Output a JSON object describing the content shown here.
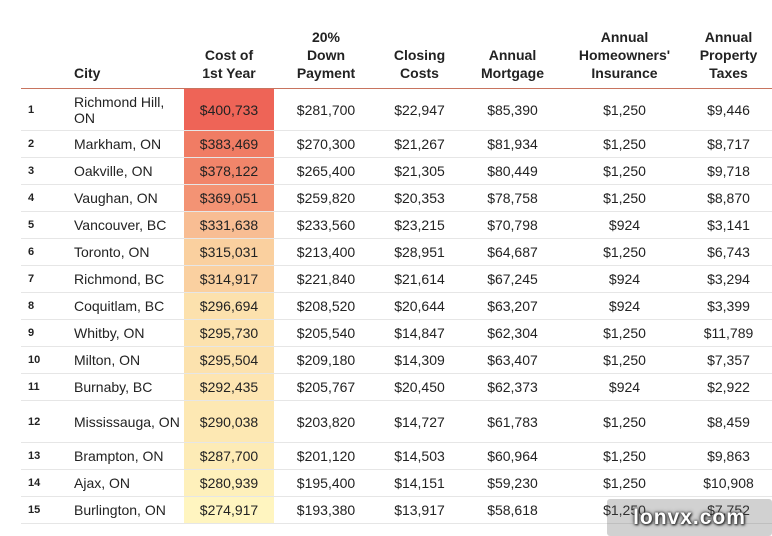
{
  "headers": {
    "rank": "",
    "city": "City",
    "cost": [
      "Cost of",
      "1st Year"
    ],
    "down": [
      "20%",
      "Down",
      "Payment"
    ],
    "closing": [
      "Closing",
      "Costs"
    ],
    "mortgage": [
      "Annual",
      "Mortgage"
    ],
    "insurance": [
      "Annual",
      "Homeowners'",
      "Insurance"
    ],
    "tax": [
      "Annual",
      "Property",
      "Taxes"
    ]
  },
  "rows": [
    {
      "rank": "1",
      "city": "Richmond Hill, ON",
      "cost": "$400,733",
      "down": "$281,700",
      "closing": "$22,947",
      "mortgage": "$85,390",
      "insurance": "$1,250",
      "tax": "$9,446",
      "cost_color": "#ee6457",
      "tall": true
    },
    {
      "rank": "2",
      "city": "Markham, ON",
      "cost": "$383,469",
      "down": "$270,300",
      "closing": "$21,267",
      "mortgage": "$81,934",
      "insurance": "$1,250",
      "tax": "$8,717",
      "cost_color": "#f07c64",
      "tall": false
    },
    {
      "rank": "3",
      "city": "Oakville, ON",
      "cost": "$378,122",
      "down": "$265,400",
      "closing": "$21,305",
      "mortgage": "$80,449",
      "insurance": "$1,250",
      "tax": "$9,718",
      "cost_color": "#f1856a",
      "tall": false
    },
    {
      "rank": "4",
      "city": "Vaughan, ON",
      "cost": "$369,051",
      "down": "$259,820",
      "closing": "$20,353",
      "mortgage": "$78,758",
      "insurance": "$1,250",
      "tax": "$8,870",
      "cost_color": "#f39374",
      "tall": false
    },
    {
      "rank": "5",
      "city": "Vancouver, BC",
      "cost": "$331,638",
      "down": "$233,560",
      "closing": "$23,215",
      "mortgage": "$70,798",
      "insurance": "$924",
      "tax": "$3,141",
      "cost_color": "#f8bd93",
      "tall": false
    },
    {
      "rank": "6",
      "city": "Toronto, ON",
      "cost": "$315,031",
      "down": "$213,400",
      "closing": "$28,951",
      "mortgage": "$64,687",
      "insurance": "$1,250",
      "tax": "$6,743",
      "cost_color": "#fad09f",
      "tall": false
    },
    {
      "rank": "7",
      "city": "Richmond, BC",
      "cost": "$314,917",
      "down": "$221,840",
      "closing": "$21,614",
      "mortgage": "$67,245",
      "insurance": "$924",
      "tax": "$3,294",
      "cost_color": "#fad0a0",
      "tall": false
    },
    {
      "rank": "8",
      "city": "Coquitlam, BC",
      "cost": "$296,694",
      "down": "$208,520",
      "closing": "$20,644",
      "mortgage": "$63,207",
      "insurance": "$924",
      "tax": "$3,399",
      "cost_color": "#fce1ad",
      "tall": false
    },
    {
      "rank": "9",
      "city": "Whitby, ON",
      "cost": "$295,730",
      "down": "$205,540",
      "closing": "$14,847",
      "mortgage": "$62,304",
      "insurance": "$1,250",
      "tax": "$11,789",
      "cost_color": "#fce2ae",
      "tall": false
    },
    {
      "rank": "10",
      "city": "Milton, ON",
      "cost": "$295,504",
      "down": "$209,180",
      "closing": "$14,309",
      "mortgage": "$63,407",
      "insurance": "$1,250",
      "tax": "$7,357",
      "cost_color": "#fce2ae",
      "tall": false
    },
    {
      "rank": "11",
      "city": "Burnaby, BC",
      "cost": "$292,435",
      "down": "$205,767",
      "closing": "$20,450",
      "mortgage": "$62,373",
      "insurance": "$924",
      "tax": "$2,922",
      "cost_color": "#fde5b1",
      "tall": false
    },
    {
      "rank": "12",
      "city": "Mississauga, ON",
      "cost": "$290,038",
      "down": "$203,820",
      "closing": "$14,727",
      "mortgage": "$61,783",
      "insurance": "$1,250",
      "tax": "$8,459",
      "cost_color": "#fde8b3",
      "tall": true
    },
    {
      "rank": "13",
      "city": "Brampton, ON",
      "cost": "$287,700",
      "down": "$201,120",
      "closing": "$14,503",
      "mortgage": "$60,964",
      "insurance": "$1,250",
      "tax": "$9,863",
      "cost_color": "#fdebb6",
      "tall": false
    },
    {
      "rank": "14",
      "city": "Ajax, ON",
      "cost": "$280,939",
      "down": "$195,400",
      "closing": "$14,151",
      "mortgage": "$59,230",
      "insurance": "$1,250",
      "tax": "$10,908",
      "cost_color": "#fef0bb",
      "tall": false
    },
    {
      "rank": "15",
      "city": "Burlington, ON",
      "cost": "$274,917",
      "down": "$193,380",
      "closing": "$13,917",
      "mortgage": "$58,618",
      "insurance": "$1,250",
      "tax": "$7,752",
      "cost_color": "#fff5c0",
      "tall": false
    }
  ],
  "watermark": "lonvx.com"
}
